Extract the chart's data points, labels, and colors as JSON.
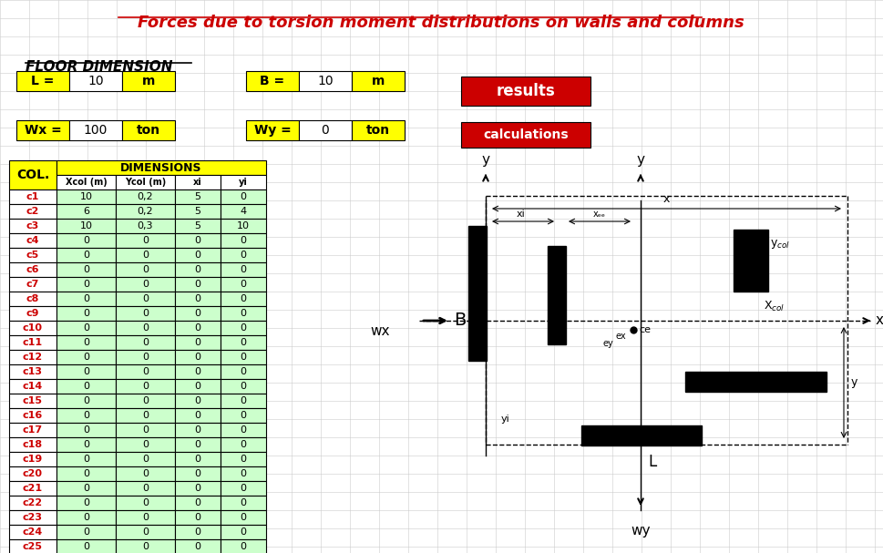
{
  "title": "Forces due to torsion moment distributions on walls and columns",
  "title_color": "#CC0000",
  "bg_color": "#FFFFFF",
  "grid_color": "#CCCCCC",
  "floor_dim_label": "FLOOR DIMENSION",
  "L_label": "L =",
  "L_value": "10",
  "L_unit": "m",
  "B_label": "B =",
  "B_value": "10",
  "B_unit": "m",
  "Wx_label": "Wx =",
  "Wx_value": "100",
  "Wx_unit": "ton",
  "Wy_label": "Wy =",
  "Wy_value": "0",
  "Wy_unit": "ton",
  "results_btn_color": "#CC0000",
  "calc_btn_color": "#CC0000",
  "col_header": "COL.",
  "dim_header": "DIMENSIONS",
  "sub_headers": [
    "Xcol (m)",
    "Ycol (m)",
    "xi",
    "yi"
  ],
  "rows": [
    [
      "c1",
      "10",
      "0,2",
      "5",
      "0"
    ],
    [
      "c2",
      "6",
      "0,2",
      "5",
      "4"
    ],
    [
      "c3",
      "10",
      "0,3",
      "5",
      "10"
    ],
    [
      "c4",
      "0",
      "0",
      "0",
      "0"
    ],
    [
      "c5",
      "0",
      "0",
      "0",
      "0"
    ],
    [
      "c6",
      "0",
      "0",
      "0",
      "0"
    ],
    [
      "c7",
      "0",
      "0",
      "0",
      "0"
    ],
    [
      "c8",
      "0",
      "0",
      "0",
      "0"
    ],
    [
      "c9",
      "0",
      "0",
      "0",
      "0"
    ],
    [
      "c10",
      "0",
      "0",
      "0",
      "0"
    ],
    [
      "c11",
      "0",
      "0",
      "0",
      "0"
    ],
    [
      "c12",
      "0",
      "0",
      "0",
      "0"
    ],
    [
      "c13",
      "0",
      "0",
      "0",
      "0"
    ],
    [
      "c14",
      "0",
      "0",
      "0",
      "0"
    ],
    [
      "c15",
      "0",
      "0",
      "0",
      "0"
    ],
    [
      "c16",
      "0",
      "0",
      "0",
      "0"
    ],
    [
      "c17",
      "0",
      "0",
      "0",
      "0"
    ],
    [
      "c18",
      "0",
      "0",
      "0",
      "0"
    ],
    [
      "c19",
      "0",
      "0",
      "0",
      "0"
    ],
    [
      "c20",
      "0",
      "0",
      "0",
      "0"
    ],
    [
      "c21",
      "0",
      "0",
      "0",
      "0"
    ],
    [
      "c22",
      "0",
      "0",
      "0",
      "0"
    ],
    [
      "c23",
      "0",
      "0",
      "0",
      "0"
    ],
    [
      "c24",
      "0",
      "0",
      "0",
      "0"
    ],
    [
      "c25",
      "0",
      "0",
      "0",
      "0"
    ]
  ],
  "header_yellow": "#FFFF00",
  "row_green": "#CCFFCC",
  "text_red": "#CC0000",
  "text_black": "#000000",
  "border_color": "#000000"
}
